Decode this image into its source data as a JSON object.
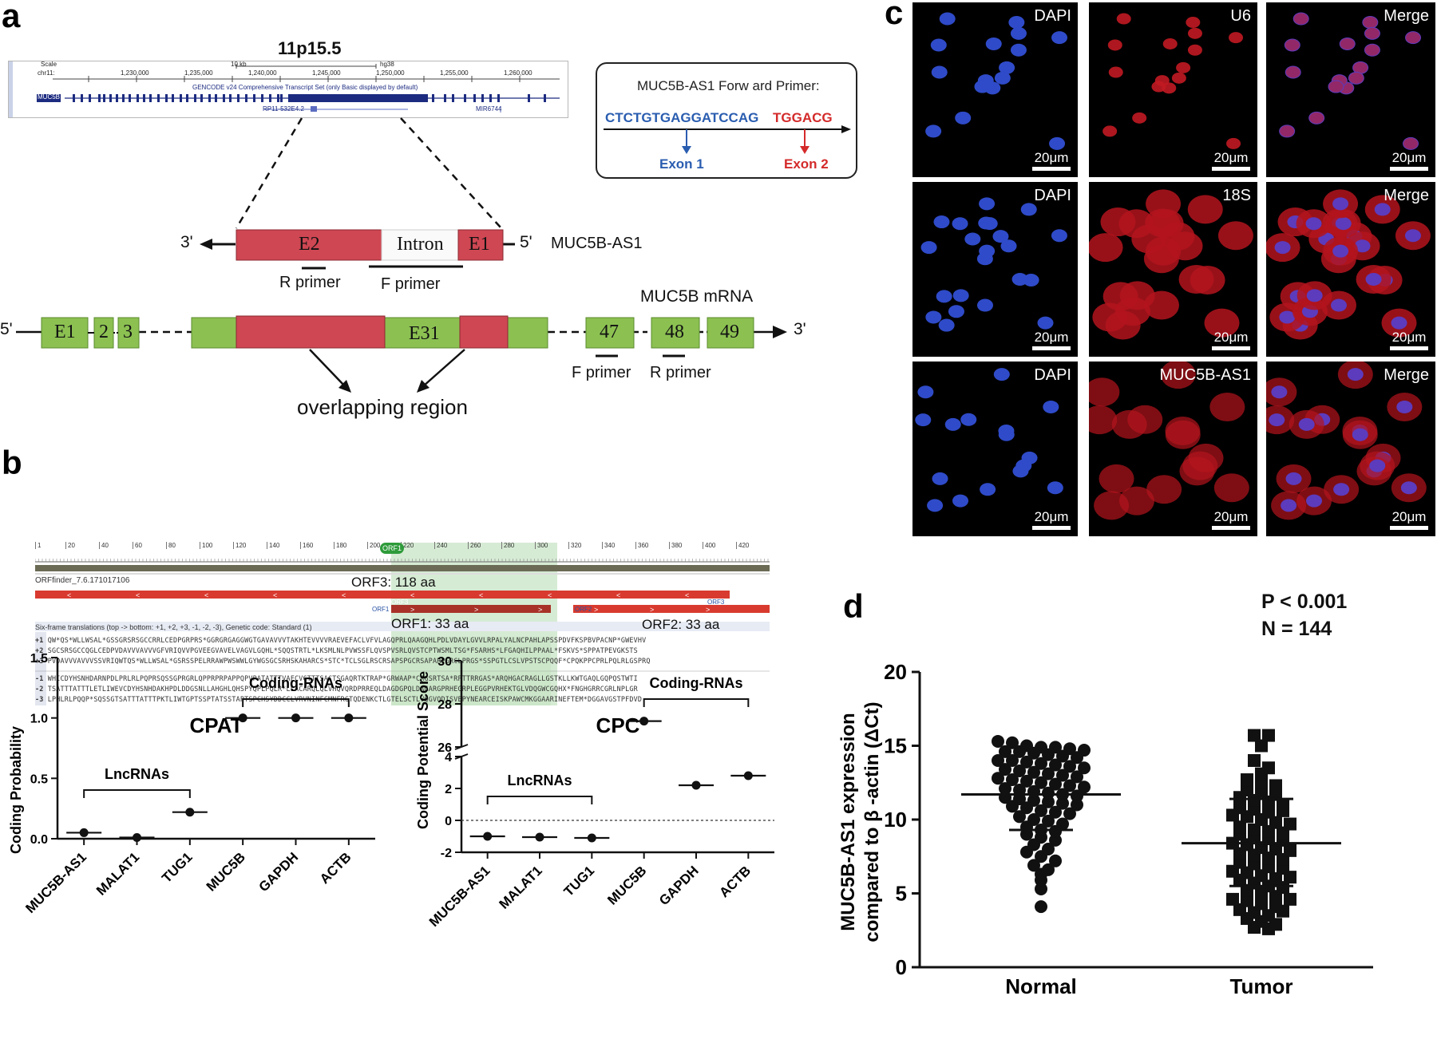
{
  "panels": {
    "a": "a",
    "b": "b",
    "c": "c",
    "d": "d"
  },
  "panel_a": {
    "locus": "11p15.5",
    "browser": {
      "scale_label": "Scale",
      "chr_label": "chr11:",
      "scale_value": "10 kb",
      "assembly": "hg38",
      "positions": [
        "1,230,000",
        "1,235,000",
        "1,240,000",
        "1,245,000",
        "1,250,000",
        "1,255,000",
        "1,260,000"
      ],
      "track_title": "GENCODE v24 Comprehensive Transcript Set (only Basic displayed by default)",
      "gene_label": "MUC5B",
      "antisense_label": "RP11-532E4.2",
      "mir_label": "MIR6744"
    },
    "primer_box": {
      "title": "MUC5B-AS1 Forw ard Primer:",
      "seq_exon1": "CTCTGTGAGGATCCAG",
      "seq_exon2": "TGGACG",
      "exon1_label": "Exon 1",
      "exon2_label": "Exon 2",
      "exon1_color": "#2a5db0",
      "exon2_color": "#d42a2a"
    },
    "as1": {
      "three_prime": "3'",
      "five_prime": "5'",
      "e2": "E2",
      "intron": "Intron",
      "e1": "E1",
      "name": "MUC5B-AS1",
      "r_primer": "R primer",
      "f_primer": "F primer"
    },
    "mrna": {
      "five_prime": "5'",
      "three_prime": "3'",
      "name": "MUC5B mRNA",
      "exons": [
        "E1",
        "2",
        "3",
        "E31",
        "47",
        "48",
        "49"
      ],
      "f_primer": "F primer",
      "r_primer": "R primer",
      "overlap_label": "overlapping region"
    },
    "colors": {
      "red_exon": "#cf4753",
      "green_exon": "#8cc152"
    }
  },
  "panel_b": {
    "ruler_ticks": [
      "1",
      "20",
      "40",
      "60",
      "80",
      "100",
      "120",
      "140",
      "160",
      "180",
      "200",
      "220",
      "240",
      "260",
      "280",
      "300",
      "320",
      "340",
      "360",
      "380",
      "400",
      "420"
    ],
    "orf1_badge": "ORF1",
    "orffinder_label": "ORFfinder_7.6.171017106",
    "orf3_annotation": "ORF3: 118 aa",
    "orf3_tag": "ORF3",
    "orf1_tag": "ORF1",
    "orf2_tag": "ORF2",
    "sixframe_label": "Six-frame translations (top -> bottom: +1, +2, +3, -1, -2, -3), Genetic code: Standard (1)",
    "orf1_annotation": "ORF1: 33 aa",
    "orf2_annotation": "ORF2: 33 aa",
    "frame_labels": [
      "+1",
      "+2",
      "+3",
      "-1",
      "-2",
      "-3"
    ],
    "frames": [
      "QW*QS*WLLWSAL*GSSGRSRSGCCRRLCEDPGRPRS*GGRGRGAGGWGTGAVAVVVTAKHTEVVVVRAEVEFACLVFVLAGQPRLQAAGQHLPDLVDAYLGVVLRPALYALNCPAHLAPSSPDVFKSPBVPACNP*GWEVHV",
      "SGCSRSGCCQGLCEDPVDAVVVAVVVGFVRIQVVPGVEEGVAVELVAGVLGQHL*SQQSTRTL*LKSMLNLPVWSSFLQVSPVSRLQVSTCPTWSMLTSG*FSARHS*LFGAQHILPPAAL*FSKVS*SPPATPEVGKSTS",
      "PVDAVVVAVVVSSVRIQWTQS*WLLWSAL*GSRSSPELRRAWPWSWWLGYWGSGCSRHSKAHARCS*STC*TCLSGLRSCRSAPSPGCRSAPARPGRCLPRGS*SSPGTLCSLVPSTSCPQQF*CPQKPPCPRLPQLRLGSPRQ",
      "WHICDYHSNHDARNPDLPRLRLPQPRSQSSGPRGRLQPPRPRPAPPQPVPATATTTVAFCVCTTTSACTSGAQRTKTRAP*GRWAAP*CRGSRTSA*RPTTRRGAS*ARQHGACRAGLLGSTKLLKWTGAQLGQPQSTWTI",
      "TSATTTATTTLETLIWEVCDYHSNHDAKHPDLDDGSNLLAHGHLQHSPYQPLPQLR*LLACARQLQLVHQVQRDPRREQLDAGDGPQLDAGARGPRHEGRPLEGGPVRHEKTGLVDQGWCGQHX*FNGHGRRCGRLNPLGR",
      "LPHLRLPQQP*SQSSGTSATTTATTTPKTLIWTGPTSSPTATSSTAPTSPCHSYDDCCLVRVNINFCMNFRGTQDENKCTLGTELSCTLVQGVQDISVEPYNEARCEISKPAWCMKGGAARINEFTEM*DGGAVGSTPFDVD"
    ],
    "cpat": {
      "title": "CPAT",
      "ylabel": "Coding Probability",
      "lnc_label": "LncRNAs",
      "coding_label": "Coding-RNAs"
    },
    "cpc": {
      "title": "CPC",
      "ylabel": "Coding Potential Score",
      "lnc_label": "LncRNAs",
      "coding_label": "Coding-RNAs"
    }
  },
  "panel_c": {
    "scale_bar": "20μm",
    "columns": [
      "DAPI",
      "U6",
      "Merge",
      "DAPI",
      "18S",
      "Merge",
      "DAPI",
      "MUC5B-AS1",
      "Merge"
    ]
  },
  "panel_d": {
    "stats": {
      "p": "P < 0.001",
      "n": "N = 144"
    }
  },
  "chart_data": [
    {
      "type": "scatter",
      "title": "CPAT",
      "categories": [
        "MUC5B-AS1",
        "MALAT1",
        "TUG1",
        "MUC5B",
        "GAPDH",
        "ACTB"
      ],
      "values": [
        0.05,
        0.01,
        0.22,
        1.0,
        1.0,
        1.0
      ],
      "ylabel": "Coding Probability",
      "xlabel": "",
      "ylim": [
        0,
        1.5
      ],
      "yticks": [
        "0.0",
        "0.5",
        "1.0",
        "1.5"
      ]
    },
    {
      "type": "scatter",
      "title": "CPC",
      "categories": [
        "MUC5B-AS1",
        "MALAT1",
        "TUG1",
        "MUC5B",
        "GAPDH",
        "ACTB"
      ],
      "values": [
        -1.0,
        -1.05,
        -1.1,
        27.2,
        2.2,
        2.8
      ],
      "ylabel": "Coding Potential Score",
      "xlabel": "",
      "ylim_lower": [
        -2,
        4
      ],
      "ylim_upper": [
        26,
        30
      ],
      "yticks": [
        "-2",
        "0",
        "2",
        "4",
        "26",
        "28",
        "30"
      ]
    },
    {
      "type": "scatter",
      "title": "",
      "categories": [
        "Normal",
        "Tumor"
      ],
      "ylabel": "MUC5B-AS1 expression compared to β -actin (ΔCt)",
      "xlabel": "",
      "ylim": [
        0,
        20
      ],
      "yticks": [
        "0",
        "5",
        "10",
        "15",
        "20"
      ],
      "series": [
        {
          "name": "Normal",
          "mean": 11.7,
          "sd_lower": 9.3,
          "values": [
            15.3,
            15.2,
            15.0,
            14.9,
            14.9,
            14.8,
            14.7,
            14.6,
            14.6,
            14.5,
            14.4,
            14.3,
            14.2,
            14.0,
            14.0,
            13.9,
            13.8,
            13.7,
            13.6,
            13.5,
            13.4,
            13.3,
            13.2,
            13.1,
            13.0,
            12.9,
            12.8,
            12.7,
            12.6,
            12.5,
            12.4,
            12.3,
            12.2,
            12.1,
            12.0,
            11.9,
            11.8,
            11.7,
            11.6,
            11.5,
            11.4,
            11.3,
            11.2,
            11.1,
            11.0,
            10.9,
            10.8,
            10.6,
            10.5,
            10.4,
            10.2,
            10.0,
            9.9,
            9.7,
            9.5,
            9.3,
            9.2,
            9.0,
            8.8,
            8.6,
            8.3,
            8.0,
            7.8,
            7.5,
            7.2,
            6.9,
            6.6,
            6.3,
            5.9,
            5.3,
            4.1
          ]
        },
        {
          "name": "Tumor",
          "mean": 8.4,
          "sd_upper": 11.4,
          "sd_lower": 5.5,
          "values": [
            15.7,
            15.7,
            15.0,
            14.0,
            13.5,
            13.1,
            12.7,
            12.5,
            12.3,
            12.0,
            11.9,
            11.7,
            11.5,
            11.3,
            11.2,
            11.0,
            10.8,
            10.7,
            10.5,
            10.3,
            10.2,
            10.0,
            9.8,
            9.7,
            9.5,
            9.3,
            9.2,
            9.0,
            8.9,
            8.7,
            8.6,
            8.4,
            8.3,
            8.1,
            8.0,
            7.9,
            7.7,
            7.6,
            7.4,
            7.3,
            7.1,
            7.0,
            6.8,
            6.7,
            6.5,
            6.4,
            6.2,
            6.0,
            5.9,
            5.7,
            5.5,
            5.4,
            5.2,
            5.0,
            4.8,
            4.6,
            4.5,
            4.3,
            4.1,
            3.9,
            3.7,
            3.5,
            3.3,
            3.1,
            2.9,
            2.7,
            2.6,
            3.8,
            4.6,
            6.1,
            9.1,
            10.6
          ]
        }
      ]
    }
  ]
}
